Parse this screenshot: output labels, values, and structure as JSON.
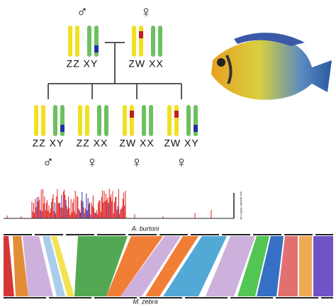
{
  "parents": [
    {
      "symbol": "♂",
      "genotype": "ZZ XY"
    },
    {
      "symbol": "♀",
      "genotype": "ZW XX"
    }
  ],
  "offspring": [
    {
      "symbol": "♂",
      "genotype": "ZZ XY"
    },
    {
      "symbol": "♀",
      "genotype": "ZZ XX"
    },
    {
      "symbol": "♀",
      "genotype": "ZW XX"
    },
    {
      "symbol": "♀",
      "genotype": "ZW XY"
    }
  ],
  "track": {
    "axis_label": "sex-specific SNPs / kb"
  },
  "synteny": {
    "top": "A. burtoni",
    "bottom": "M. zebra"
  }
}
